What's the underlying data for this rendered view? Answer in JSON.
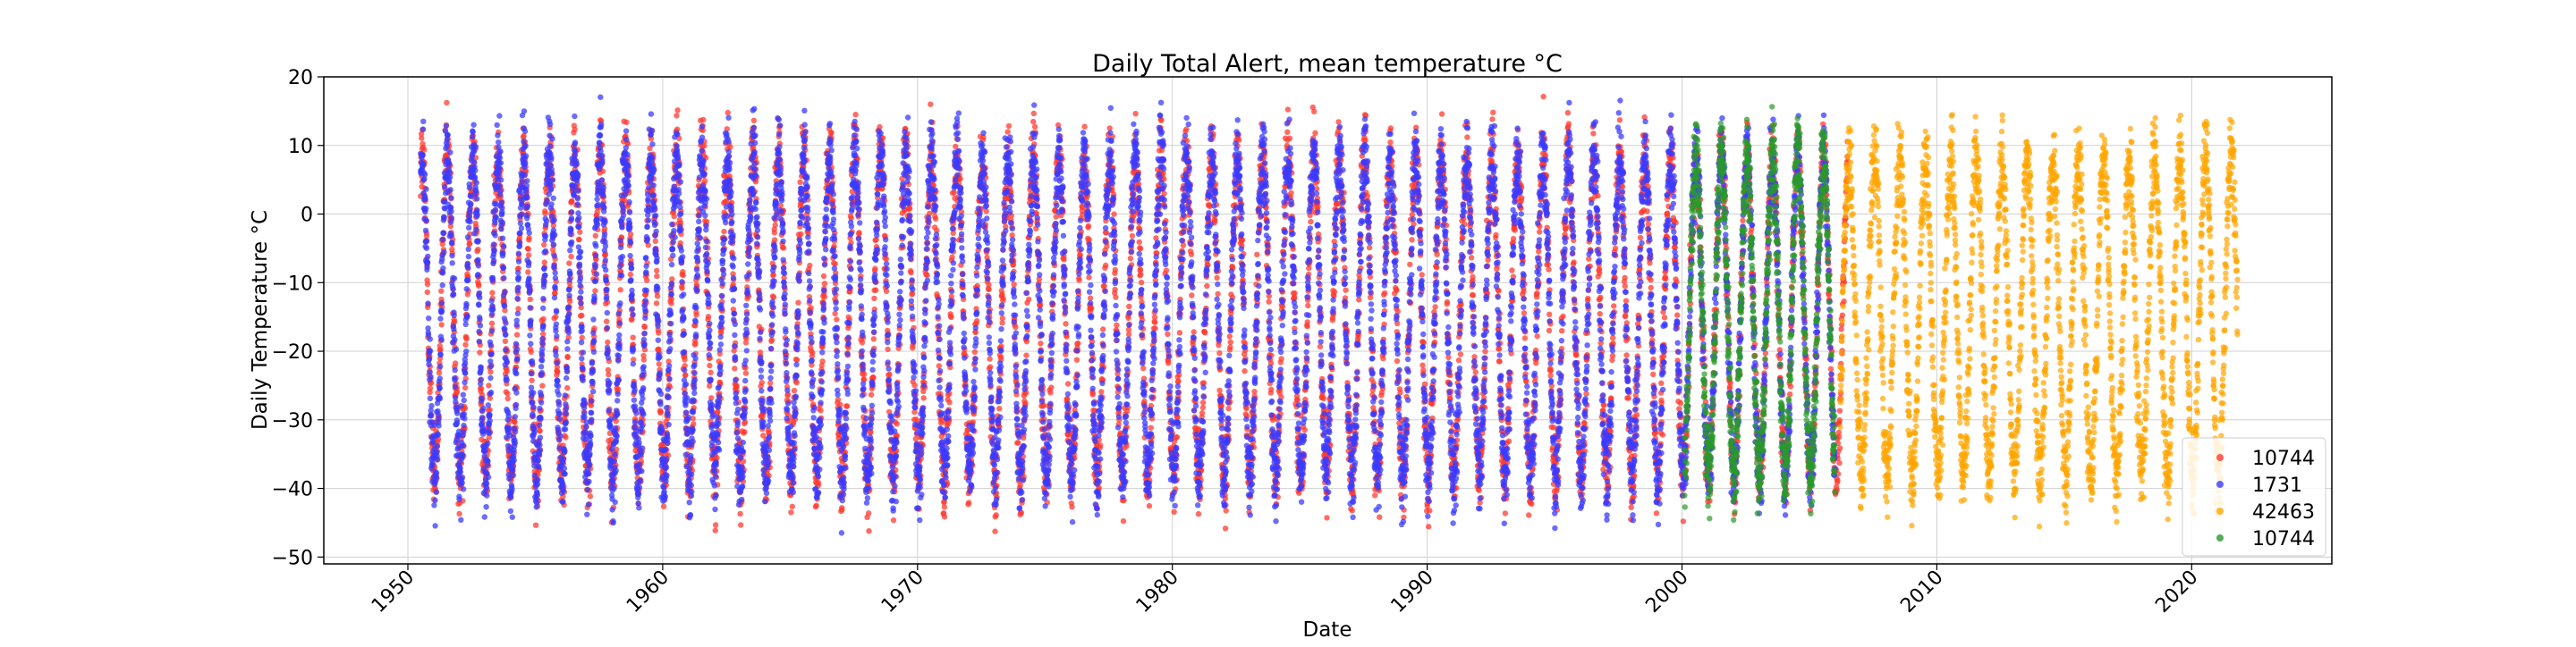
{
  "chart_data": {
    "type": "scatter",
    "title": "Daily Total Alert, mean temperature °C",
    "xlabel": "Date",
    "ylabel": "Daily Temperature °C",
    "xlim": [
      1946.7,
      2025.5
    ],
    "ylim": [
      -51,
      20
    ],
    "x_ticks": [
      "1950",
      "1960",
      "1970",
      "1980",
      "1990",
      "2000",
      "2010",
      "2020"
    ],
    "y_ticks": [
      "20",
      "10",
      "0",
      "−10",
      "−20",
      "−30",
      "−40",
      "−50"
    ],
    "grid": true,
    "legend_position": "lower-right",
    "series": [
      {
        "name": "10744",
        "color": "#ff3b30",
        "years": [
          1950.5,
          2006.5
        ],
        "hue": "red"
      },
      {
        "name": "1731",
        "color": "#3b3bff",
        "years": [
          1950.5,
          2006.0
        ],
        "hue": "blue"
      },
      {
        "name": "42463",
        "color": "#ffa500",
        "years": [
          2006.2,
          2021.8
        ],
        "hue": "orange"
      },
      {
        "name": "10744",
        "color": "#2a9a2a",
        "years": [
          2000.1,
          2006.0
        ],
        "hue": "green"
      }
    ],
    "seasonal_model": {
      "summer_max": 8,
      "winter_min": -38,
      "note": "annual cycle: peaks near mid-year, minima in winter"
    }
  }
}
